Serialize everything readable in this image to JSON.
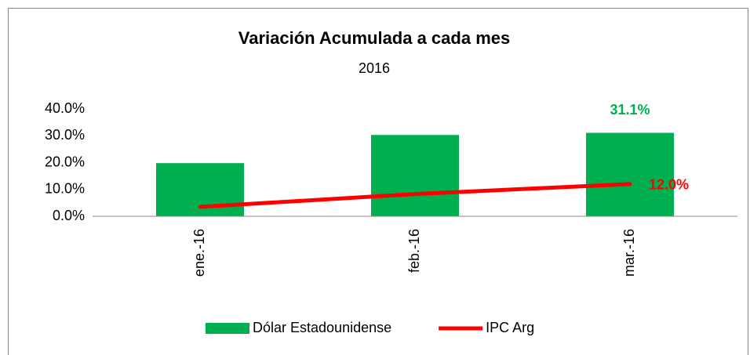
{
  "chart_data": {
    "type": "bar_line",
    "title": "Variación Acumulada a cada mes",
    "subtitle": "2016",
    "categories": [
      "ene.-16",
      "feb.-16",
      "mar.-16"
    ],
    "series": [
      {
        "name": "Dólar Estadounidense",
        "type": "bar",
        "color": "#00b050",
        "values": [
          19.8,
          30.3,
          31.1
        ],
        "value_labels": [
          null,
          null,
          "31.1%"
        ],
        "label_color": "#00b050"
      },
      {
        "name": "IPC Arg",
        "type": "line",
        "color": "#ff0000",
        "values": [
          3.5,
          8.3,
          12.0
        ],
        "value_labels": [
          null,
          null,
          "12.0%"
        ],
        "label_color": "#ff0000"
      }
    ],
    "ylim": [
      0,
      40
    ],
    "yticks": [
      {
        "value": 0,
        "label": "0.0%"
      },
      {
        "value": 10,
        "label": "10.0%"
      },
      {
        "value": 20,
        "label": "20.0%"
      },
      {
        "value": 30,
        "label": "30.0%"
      },
      {
        "value": 40,
        "label": "40.0%"
      }
    ],
    "grid": false,
    "legend": "bottom"
  }
}
